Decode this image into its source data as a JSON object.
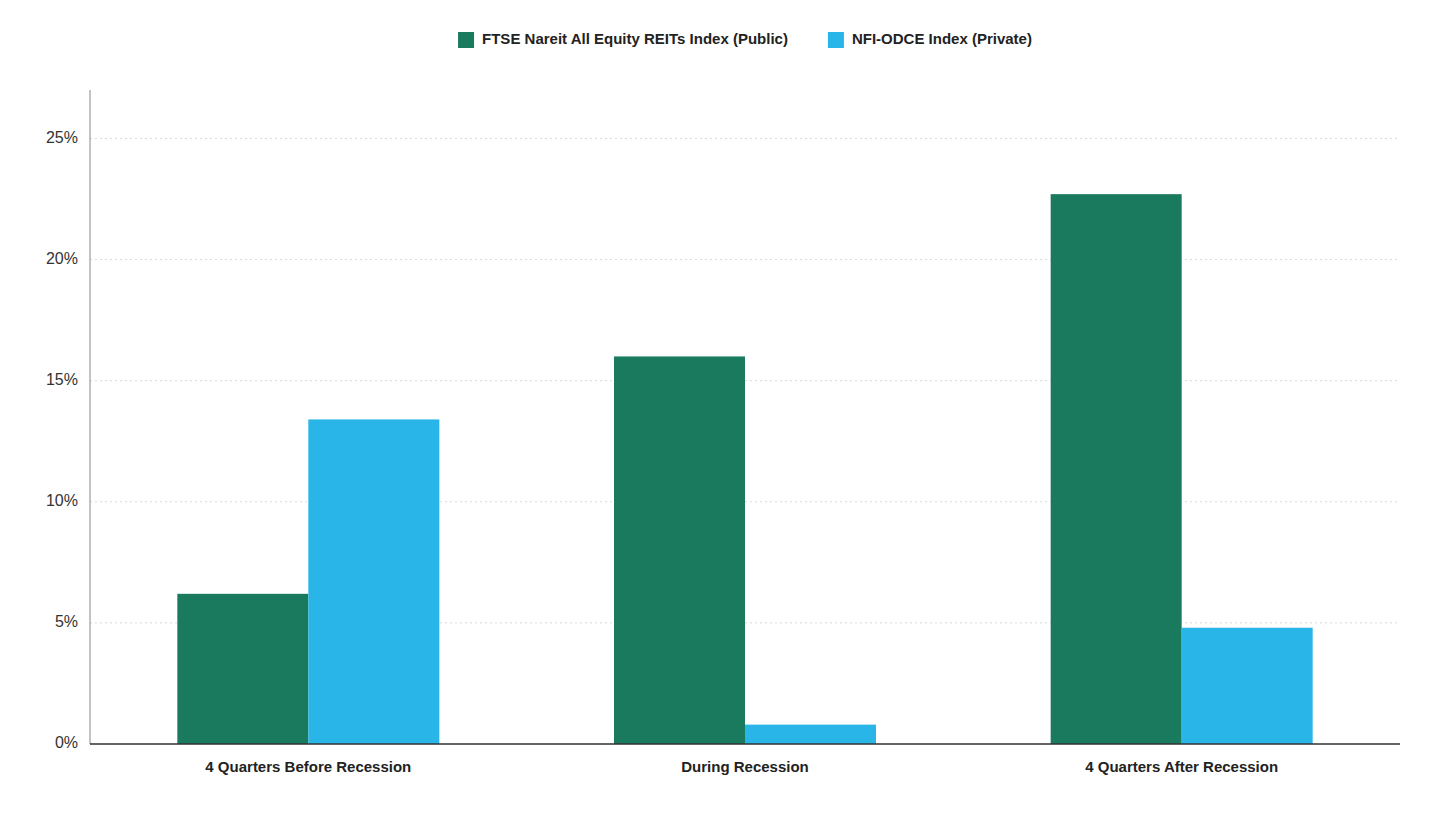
{
  "chart_data": {
    "type": "bar",
    "categories": [
      "4 Quarters Before Recession",
      "During Recession",
      "4 Quarters After Recession"
    ],
    "series": [
      {
        "name": "FTSE Nareit All Equity REITs Index (Public)",
        "color": "#1a7a5e",
        "values": [
          6.2,
          16.0,
          22.7
        ]
      },
      {
        "name": "NFI-ODCE Index (Private)",
        "color": "#29b5e8",
        "values": [
          13.4,
          0.8,
          4.8
        ]
      }
    ],
    "ylim": [
      0,
      27
    ],
    "yticks": [
      {
        "value": 0,
        "label": "0%"
      },
      {
        "value": 5,
        "label": "5%"
      },
      {
        "value": 10,
        "label": "10%"
      },
      {
        "value": 15,
        "label": "15%"
      },
      {
        "value": 20,
        "label": "20%"
      },
      {
        "value": 25,
        "label": "25%"
      }
    ],
    "grid": true,
    "legend": "top"
  }
}
